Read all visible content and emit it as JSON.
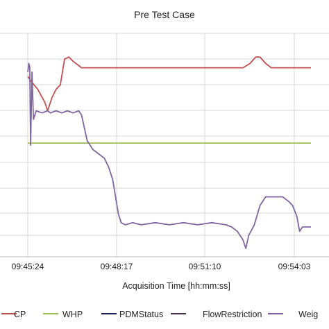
{
  "chart_data": {
    "type": "line",
    "title": "Pre Test Case",
    "xlabel": "Acquisition Time [hh:mm:ss]",
    "ylabel": "",
    "x_ticks": [
      "09:45:24",
      "09:48:17",
      "09:51:10",
      "09:54:03"
    ],
    "grid": true,
    "legend_position": "bottom",
    "series": [
      {
        "name": "CP",
        "color": "#c0504d",
        "points": [
          [
            0,
            80
          ],
          [
            0.1,
            78
          ],
          [
            0.35,
            74
          ],
          [
            0.6,
            68
          ],
          [
            0.7,
            64
          ],
          [
            0.85,
            70
          ],
          [
            1.0,
            74
          ],
          [
            1.15,
            76
          ],
          [
            1.3,
            88
          ],
          [
            1.45,
            89
          ],
          [
            1.6,
            87
          ],
          [
            1.9,
            84
          ],
          [
            2.3,
            84
          ],
          [
            3,
            84
          ],
          [
            4,
            84
          ],
          [
            5,
            84
          ],
          [
            6,
            84
          ],
          [
            7,
            84
          ],
          [
            7.6,
            84
          ],
          [
            7.85,
            86
          ],
          [
            8.05,
            89
          ],
          [
            8.2,
            89
          ],
          [
            8.4,
            86
          ],
          [
            8.6,
            84
          ],
          [
            9,
            84
          ],
          [
            10,
            84
          ]
        ]
      },
      {
        "name": "WHP",
        "color": "#9bbb59",
        "points": [
          [
            0,
            49
          ],
          [
            10,
            49
          ]
        ]
      },
      {
        "name": "PDMStatus",
        "color": "#1f1f5a",
        "points": []
      },
      {
        "name": "FlowRestriction",
        "color": "#403152",
        "points": []
      },
      {
        "name": "Weig",
        "color": "#8064a2",
        "points": [
          [
            0,
            82
          ],
          [
            0.04,
            86
          ],
          [
            0.07,
            84
          ],
          [
            0.1,
            48
          ],
          [
            0.15,
            82
          ],
          [
            0.2,
            60
          ],
          [
            0.3,
            64
          ],
          [
            0.5,
            63
          ],
          [
            0.7,
            64
          ],
          [
            0.8,
            63
          ],
          [
            1.0,
            64
          ],
          [
            1.2,
            63
          ],
          [
            1.4,
            64
          ],
          [
            1.6,
            63
          ],
          [
            1.8,
            64
          ],
          [
            1.9,
            62
          ],
          [
            2.0,
            56
          ],
          [
            2.1,
            50
          ],
          [
            2.3,
            46
          ],
          [
            2.5,
            44
          ],
          [
            2.7,
            42
          ],
          [
            2.85,
            38
          ],
          [
            3.0,
            32
          ],
          [
            3.1,
            24
          ],
          [
            3.2,
            16
          ],
          [
            3.3,
            12
          ],
          [
            3.45,
            11
          ],
          [
            3.7,
            12
          ],
          [
            4.0,
            11
          ],
          [
            4.5,
            12
          ],
          [
            5.0,
            11
          ],
          [
            5.5,
            12
          ],
          [
            6.0,
            11
          ],
          [
            6.5,
            12
          ],
          [
            7.0,
            11
          ],
          [
            7.2,
            10
          ],
          [
            7.4,
            8
          ],
          [
            7.6,
            4
          ],
          [
            7.7,
            0
          ],
          [
            7.8,
            6
          ],
          [
            8.0,
            11
          ],
          [
            8.2,
            20
          ],
          [
            8.4,
            24
          ],
          [
            8.6,
            24
          ],
          [
            8.8,
            24
          ],
          [
            9.0,
            24
          ],
          [
            9.2,
            22
          ],
          [
            9.35,
            20
          ],
          [
            9.5,
            15
          ],
          [
            9.6,
            8
          ],
          [
            9.7,
            10
          ],
          [
            10,
            10
          ]
        ]
      }
    ]
  }
}
